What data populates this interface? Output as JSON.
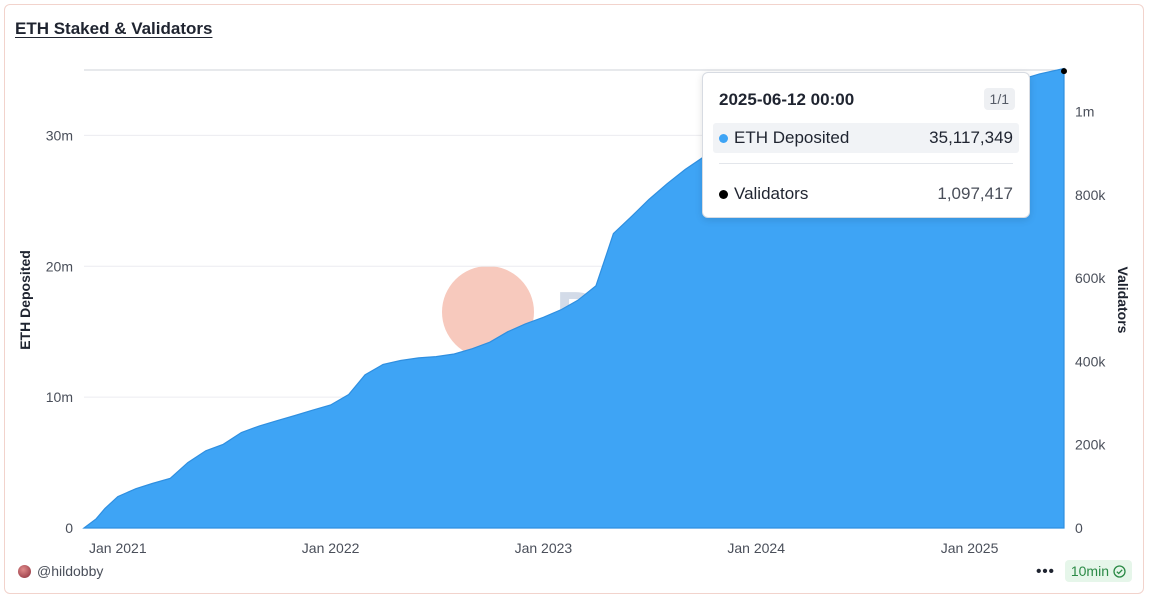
{
  "title": "ETH Staked & Validators",
  "watermark": {
    "text": "Dune"
  },
  "colors": {
    "area": "#3ea4f5",
    "area_edge": "#2f8fe0",
    "validators": "#000000",
    "badge_bg": "#e6f6ea",
    "badge_fg": "#2b8a46"
  },
  "tooltip": {
    "date": "2025-06-12 00:00",
    "page": "1/1",
    "rows": [
      {
        "label": "ETH Deposited",
        "value": "35,117,349",
        "color": "#3ea4f5"
      },
      {
        "label": "Validators",
        "value": "1,097,417",
        "color": "#000000"
      }
    ]
  },
  "footer": {
    "author": "@hildobby",
    "more_icon": "more-horizontal-icon",
    "refresh": "10min",
    "refresh_icon": "check-circle-icon"
  },
  "chart_data": {
    "type": "area",
    "title": "ETH Staked & Validators",
    "x_tick_labels": [
      "Jan 2021",
      "Jan 2022",
      "Jan 2023",
      "Jan 2024",
      "Jan 2025"
    ],
    "xlim": [
      "2020-11-04",
      "2025-06-12"
    ],
    "y_left": {
      "label": "ETH Deposited",
      "ylim": [
        0,
        35000000
      ],
      "ticks": [
        0,
        10000000,
        20000000,
        30000000
      ],
      "tick_labels": [
        "0",
        "10m",
        "20m",
        "30m"
      ]
    },
    "y_right": {
      "label": "Validators",
      "ylim": [
        0,
        1100000
      ],
      "ticks": [
        0,
        200000,
        400000,
        600000,
        800000,
        1000000
      ],
      "tick_labels": [
        "0",
        "200k",
        "400k",
        "600k",
        "800k",
        "1m"
      ]
    },
    "grid": true,
    "series": [
      {
        "name": "ETH Deposited",
        "axis": "left",
        "x": [
          "2020-11-04",
          "2020-11-25",
          "2020-12-10",
          "2021-01-01",
          "2021-02-01",
          "2021-03-01",
          "2021-04-01",
          "2021-05-01",
          "2021-06-01",
          "2021-07-01",
          "2021-08-01",
          "2021-09-01",
          "2021-10-01",
          "2021-11-01",
          "2021-12-01",
          "2022-01-01",
          "2022-02-01",
          "2022-03-01",
          "2022-04-01",
          "2022-05-01",
          "2022-06-01",
          "2022-07-01",
          "2022-08-01",
          "2022-09-01",
          "2022-10-01",
          "2022-11-01",
          "2022-12-01",
          "2023-01-01",
          "2023-02-01",
          "2023-03-01",
          "2023-04-01",
          "2023-04-20",
          "2023-05-01",
          "2023-06-01",
          "2023-07-01",
          "2023-08-01",
          "2023-09-01",
          "2023-10-01",
          "2023-11-01",
          "2023-12-01",
          "2024-01-01",
          "2024-02-01",
          "2024-03-01",
          "2024-04-01",
          "2024-05-01",
          "2024-06-01",
          "2024-07-01",
          "2024-08-01",
          "2024-09-01",
          "2024-10-01",
          "2024-11-01",
          "2024-12-01",
          "2025-01-01",
          "2025-02-01",
          "2025-03-01",
          "2025-04-01",
          "2025-05-01",
          "2025-06-12"
        ],
        "values": [
          0,
          700000,
          1500000,
          2400000,
          3000000,
          3400000,
          3800000,
          5000000,
          5900000,
          6400000,
          7300000,
          7800000,
          8200000,
          8600000,
          9000000,
          9400000,
          10200000,
          11700000,
          12500000,
          12800000,
          13000000,
          13100000,
          13300000,
          13700000,
          14200000,
          15000000,
          15600000,
          16100000,
          16700000,
          17400000,
          18500000,
          21000000,
          22500000,
          23800000,
          25100000,
          26300000,
          27400000,
          28300000,
          28800000,
          29300000,
          29600000,
          30500000,
          31200000,
          31800000,
          32300000,
          32600000,
          32900000,
          33200000,
          33500000,
          33800000,
          34000000,
          34200000,
          34300000,
          34200000,
          34000000,
          34300000,
          34700000,
          35117349
        ]
      },
      {
        "name": "Validators",
        "axis": "right",
        "x": [
          "2025-06-12"
        ],
        "values": [
          1097417
        ]
      }
    ],
    "hover": {
      "x": "2025-06-12 00:00",
      "ETH Deposited": 35117349,
      "Validators": 1097417
    }
  }
}
